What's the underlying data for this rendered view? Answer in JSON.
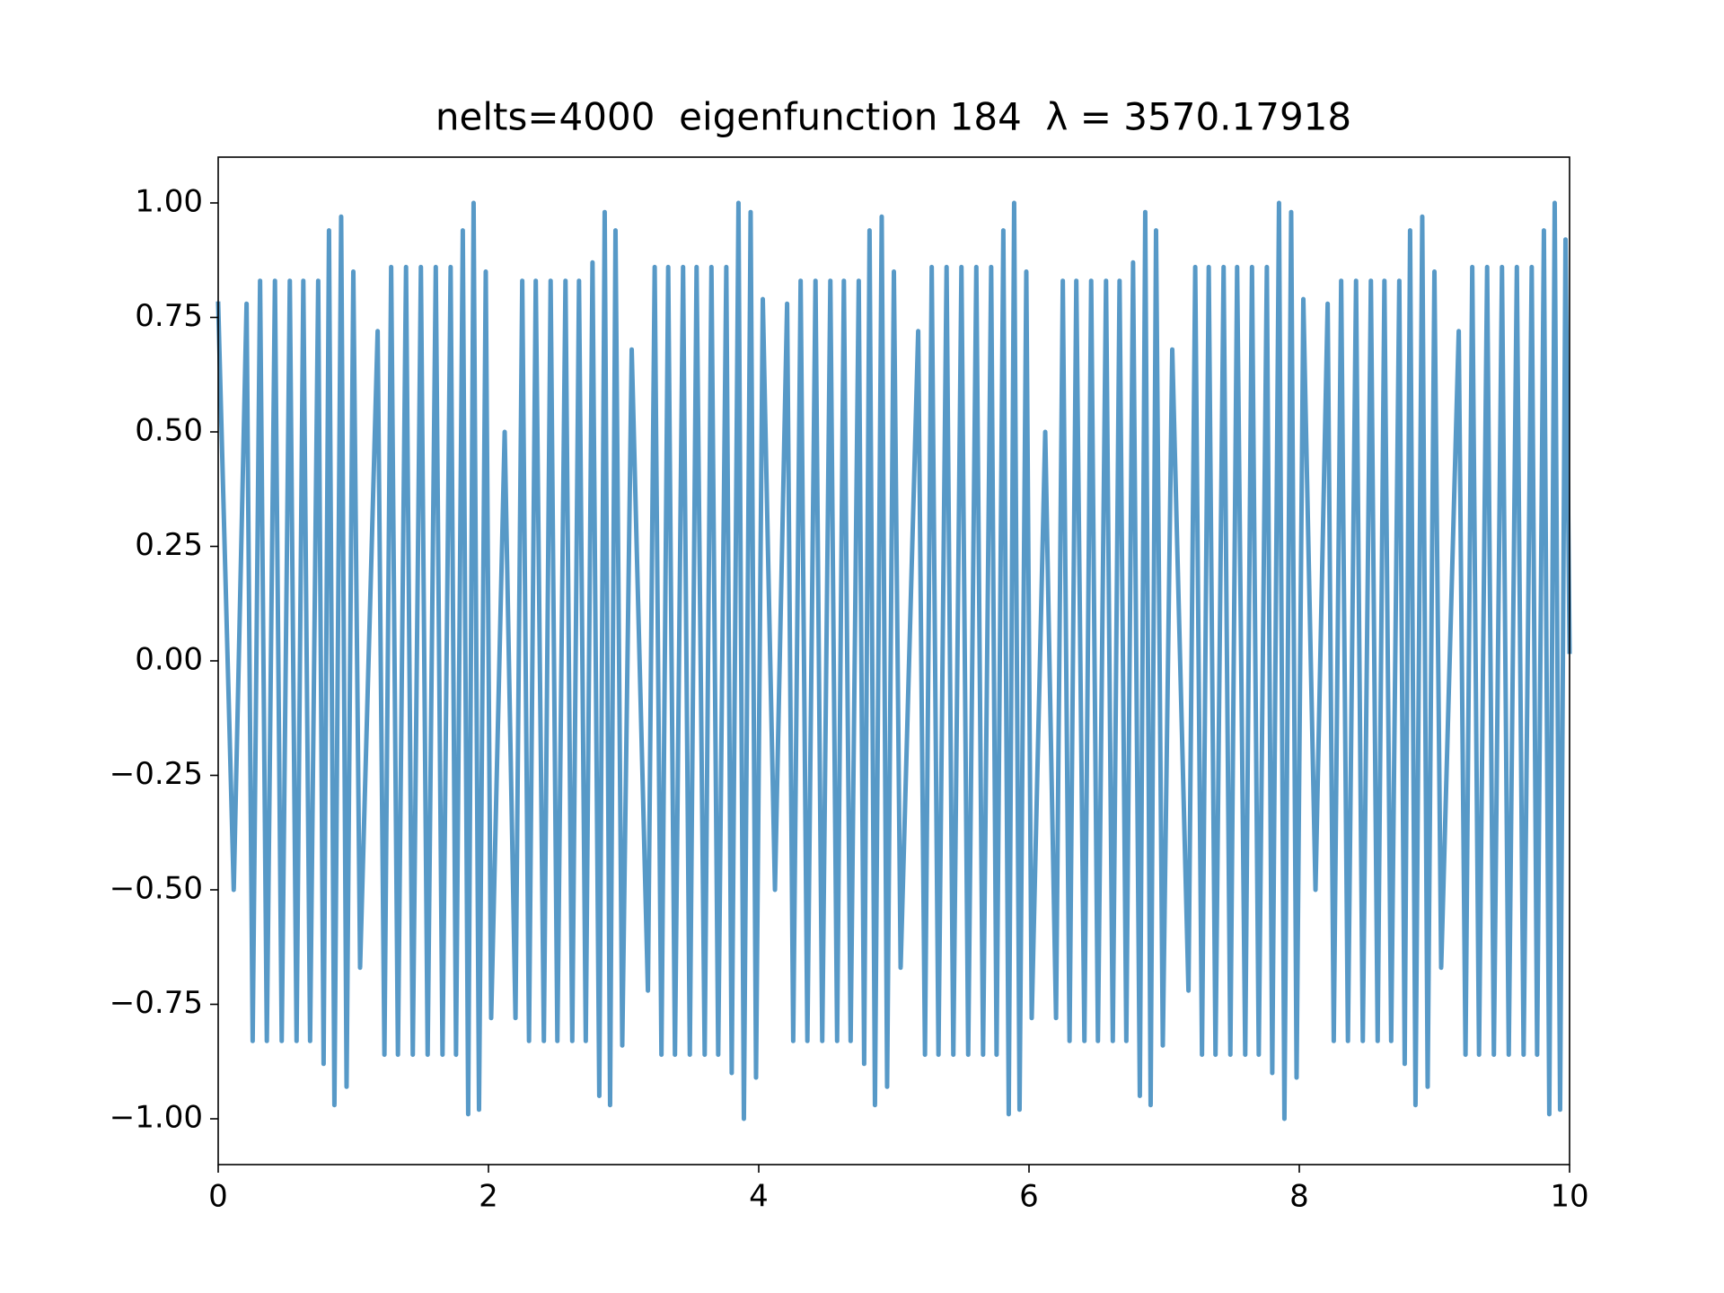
{
  "chart_data": {
    "type": "line",
    "title": "nelts=4000  eigenfunction 184  λ = 3570.17918",
    "color": "#5799c7",
    "xlim": [
      0,
      10
    ],
    "xticks": [
      0,
      2,
      4,
      6,
      8,
      10
    ],
    "ylim": [
      -1.1,
      1.1
    ],
    "yticks": [
      {
        "value": -1,
        "label": "−1.00"
      },
      {
        "value": -0.75,
        "label": "−0.75"
      },
      {
        "value": -0.5,
        "label": "−0.50"
      },
      {
        "value": -0.25,
        "label": "−0.25"
      },
      {
        "value": 0,
        "label": "0.00"
      },
      {
        "value": 0.25,
        "label": "0.25"
      },
      {
        "value": 0.5,
        "label": "0.50"
      },
      {
        "value": 0.75,
        "label": "0.75"
      },
      {
        "value": 1,
        "label": "1.00"
      }
    ],
    "x": [
      0,
      0.115,
      0.21,
      0.255,
      0.31,
      0.36,
      0.42,
      0.47,
      0.53,
      0.58,
      0.63,
      0.68,
      0.74,
      0.78,
      0.82,
      0.86,
      0.91,
      0.95,
      1.0,
      1.05,
      1.18,
      1.23,
      1.28,
      1.33,
      1.39,
      1.44,
      1.5,
      1.55,
      1.61,
      1.66,
      1.72,
      1.76,
      1.81,
      1.85,
      1.89,
      1.93,
      1.98,
      2.02,
      2.12,
      2.2,
      2.25,
      2.3,
      2.35,
      2.41,
      2.46,
      2.51,
      2.57,
      2.62,
      2.67,
      2.72,
      2.77,
      2.82,
      2.86,
      2.9,
      2.94,
      2.99,
      3.06,
      3.18,
      3.23,
      3.28,
      3.33,
      3.38,
      3.44,
      3.49,
      3.54,
      3.6,
      3.65,
      3.7,
      3.76,
      3.8,
      3.85,
      3.89,
      3.94,
      3.98,
      4.03,
      4.12,
      4.21,
      4.255,
      4.31,
      4.36,
      4.42,
      4.47,
      4.53,
      4.58,
      4.63,
      4.68,
      4.74,
      4.78,
      4.82,
      4.86,
      4.91,
      4.95,
      5.0,
      5.05,
      5.18,
      5.23,
      5.28,
      5.33,
      5.39,
      5.44,
      5.5,
      5.55,
      5.61,
      5.66,
      5.72,
      5.76,
      5.81,
      5.85,
      5.89,
      5.93,
      5.98,
      6.02,
      6.12,
      6.2,
      6.25,
      6.3,
      6.35,
      6.41,
      6.46,
      6.51,
      6.57,
      6.62,
      6.67,
      6.72,
      6.77,
      6.82,
      6.86,
      6.9,
      6.94,
      6.99,
      7.06,
      7.18,
      7.23,
      7.28,
      7.33,
      7.38,
      7.44,
      7.49,
      7.54,
      7.6,
      7.65,
      7.7,
      7.76,
      7.8,
      7.85,
      7.89,
      7.94,
      7.98,
      8.03,
      8.12,
      8.21,
      8.255,
      8.31,
      8.36,
      8.42,
      8.47,
      8.53,
      8.58,
      8.63,
      8.68,
      8.74,
      8.78,
      8.82,
      8.86,
      8.91,
      8.95,
      9.0,
      9.05,
      9.18,
      9.23,
      9.28,
      9.33,
      9.39,
      9.44,
      9.5,
      9.55,
      9.61,
      9.66,
      9.72,
      9.76,
      9.81,
      9.85,
      9.89,
      9.93,
      9.97,
      10
    ],
    "values": [
      0.78,
      -0.5,
      0.78,
      -0.83,
      0.83,
      -0.83,
      0.83,
      -0.83,
      0.83,
      -0.83,
      0.83,
      -0.83,
      0.83,
      -0.88,
      0.94,
      -0.97,
      0.97,
      -0.93,
      0.85,
      -0.67,
      0.72,
      -0.86,
      0.86,
      -0.86,
      0.86,
      -0.86,
      0.86,
      -0.86,
      0.86,
      -0.86,
      0.86,
      -0.86,
      0.94,
      -0.99,
      1.0,
      -0.98,
      0.85,
      -0.78,
      0.5,
      -0.78,
      0.83,
      -0.83,
      0.83,
      -0.83,
      0.83,
      -0.83,
      0.83,
      -0.83,
      0.83,
      -0.83,
      0.87,
      -0.95,
      0.98,
      -0.97,
      0.94,
      -0.84,
      0.68,
      -0.72,
      0.86,
      -0.86,
      0.86,
      -0.86,
      0.86,
      -0.86,
      0.86,
      -0.86,
      0.86,
      -0.86,
      0.86,
      -0.9,
      1.0,
      -1.0,
      0.98,
      -0.91,
      0.79,
      -0.5,
      0.78,
      -0.83,
      0.83,
      -0.83,
      0.83,
      -0.83,
      0.83,
      -0.83,
      0.83,
      -0.83,
      0.83,
      -0.88,
      0.94,
      -0.97,
      0.97,
      -0.93,
      0.85,
      -0.67,
      0.72,
      -0.86,
      0.86,
      -0.86,
      0.86,
      -0.86,
      0.86,
      -0.86,
      0.86,
      -0.86,
      0.86,
      -0.86,
      0.94,
      -0.99,
      1.0,
      -0.98,
      0.85,
      -0.78,
      0.5,
      -0.78,
      0.83,
      -0.83,
      0.83,
      -0.83,
      0.83,
      -0.83,
      0.83,
      -0.83,
      0.83,
      -0.83,
      0.87,
      -0.95,
      0.98,
      -0.97,
      0.94,
      -0.84,
      0.68,
      -0.72,
      0.86,
      -0.86,
      0.86,
      -0.86,
      0.86,
      -0.86,
      0.86,
      -0.86,
      0.86,
      -0.86,
      0.86,
      -0.9,
      1.0,
      -1.0,
      0.98,
      -0.91,
      0.79,
      -0.5,
      0.78,
      -0.83,
      0.83,
      -0.83,
      0.83,
      -0.83,
      0.83,
      -0.83,
      0.83,
      -0.83,
      0.83,
      -0.88,
      0.94,
      -0.97,
      0.97,
      -0.93,
      0.85,
      -0.67,
      0.72,
      -0.86,
      0.86,
      -0.86,
      0.86,
      -0.86,
      0.86,
      -0.86,
      0.86,
      -0.86,
      0.86,
      -0.86,
      0.94,
      -0.99,
      1.0,
      -0.98,
      0.92,
      0.02
    ]
  }
}
